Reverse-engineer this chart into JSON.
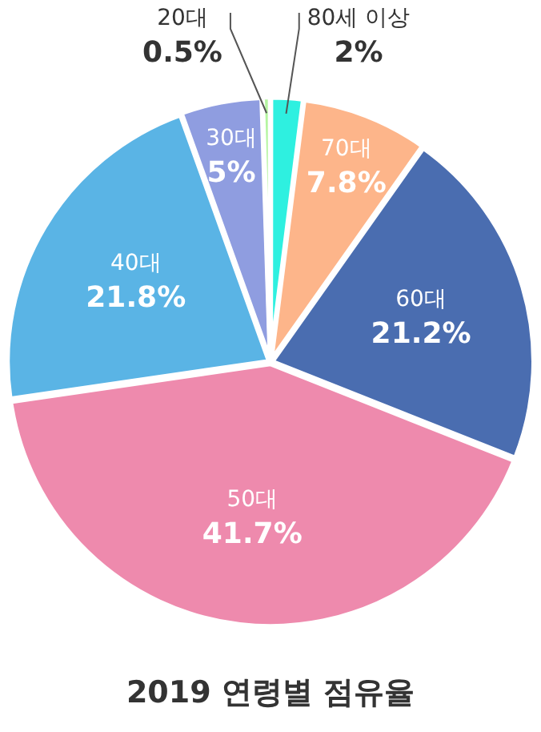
{
  "chart_data": {
    "type": "pie",
    "title": "2019 연령별 점유율",
    "categories": [
      "80세 이상",
      "70대",
      "60대",
      "50대",
      "40대",
      "30대",
      "20대"
    ],
    "values": [
      2,
      7.8,
      21.2,
      41.7,
      21.8,
      5,
      0.5
    ],
    "value_labels": [
      "2%",
      "7.8%",
      "21.2%",
      "41.7%",
      "21.8%",
      "5%",
      "0.5%"
    ],
    "colors": [
      "#2ef0e0",
      "#fdb58a",
      "#4a6db0",
      "#ee8aad",
      "#5ab4e5",
      "#8f9de0",
      "#b4f5a0"
    ]
  }
}
